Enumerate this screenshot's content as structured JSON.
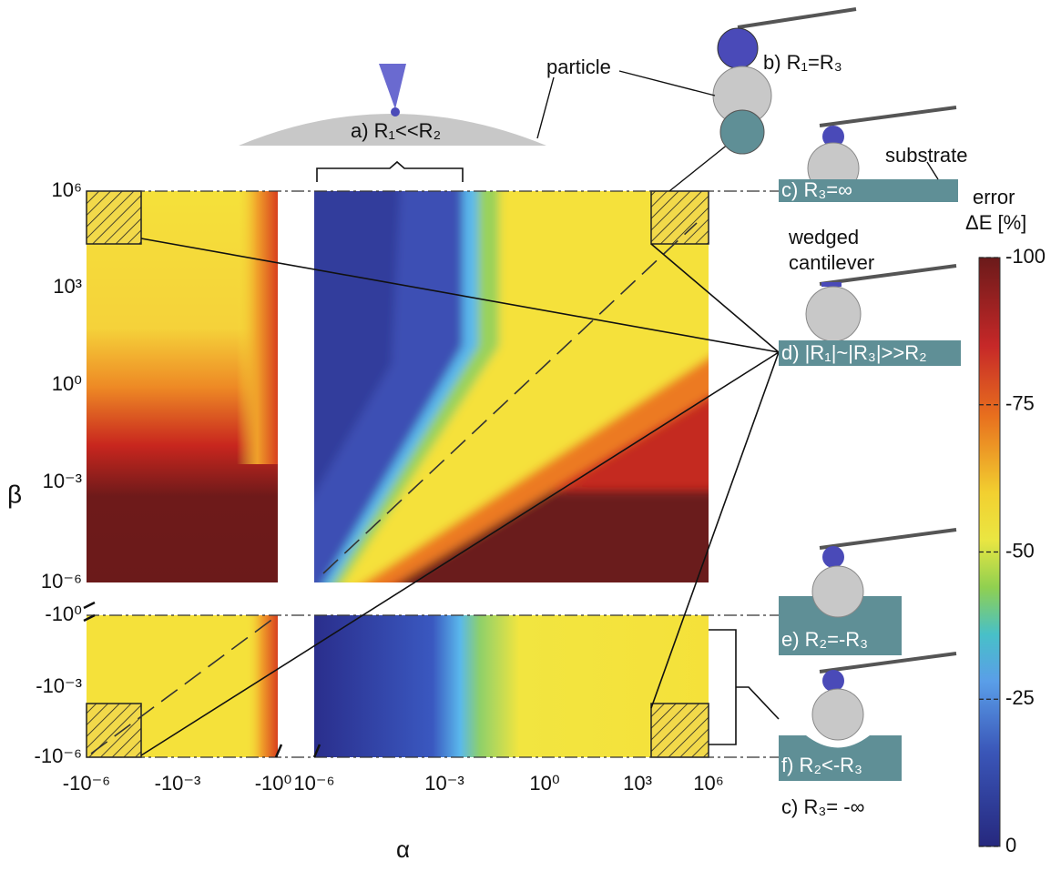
{
  "figure": {
    "axes": {
      "x_label": "α",
      "y_label": "β",
      "x_ticks": [
        "-10⁻⁶",
        "-10⁻³",
        "-10⁰",
        "10⁻⁶",
        "10⁻³",
        "10⁰",
        "10³",
        "10⁶"
      ],
      "y_ticks": [
        "10⁶",
        "10³",
        "10⁰",
        "10⁻³",
        "10⁻⁶",
        "-10⁰",
        "-10⁻³",
        "-10⁻⁶"
      ]
    },
    "colorbar": {
      "title": "error",
      "label": "ΔE [%]",
      "ticks": [
        -100,
        -75,
        -50,
        -25,
        0
      ]
    },
    "annotations": {
      "particle": "particle",
      "substrate": "substrate",
      "cantilever": [
        "wedged",
        "cantilever"
      ]
    },
    "cases": {
      "a": "a) R₁<<R₂",
      "b": "b) R₁=R₃",
      "c_top": "c) R₃=∞",
      "d": "d) |R₁|~|R₃|>>R₂",
      "e": "e) R₂=-R₃",
      "f": "f) R₂<-R₃",
      "c_bottom": "c) R₃= -∞"
    }
  }
}
